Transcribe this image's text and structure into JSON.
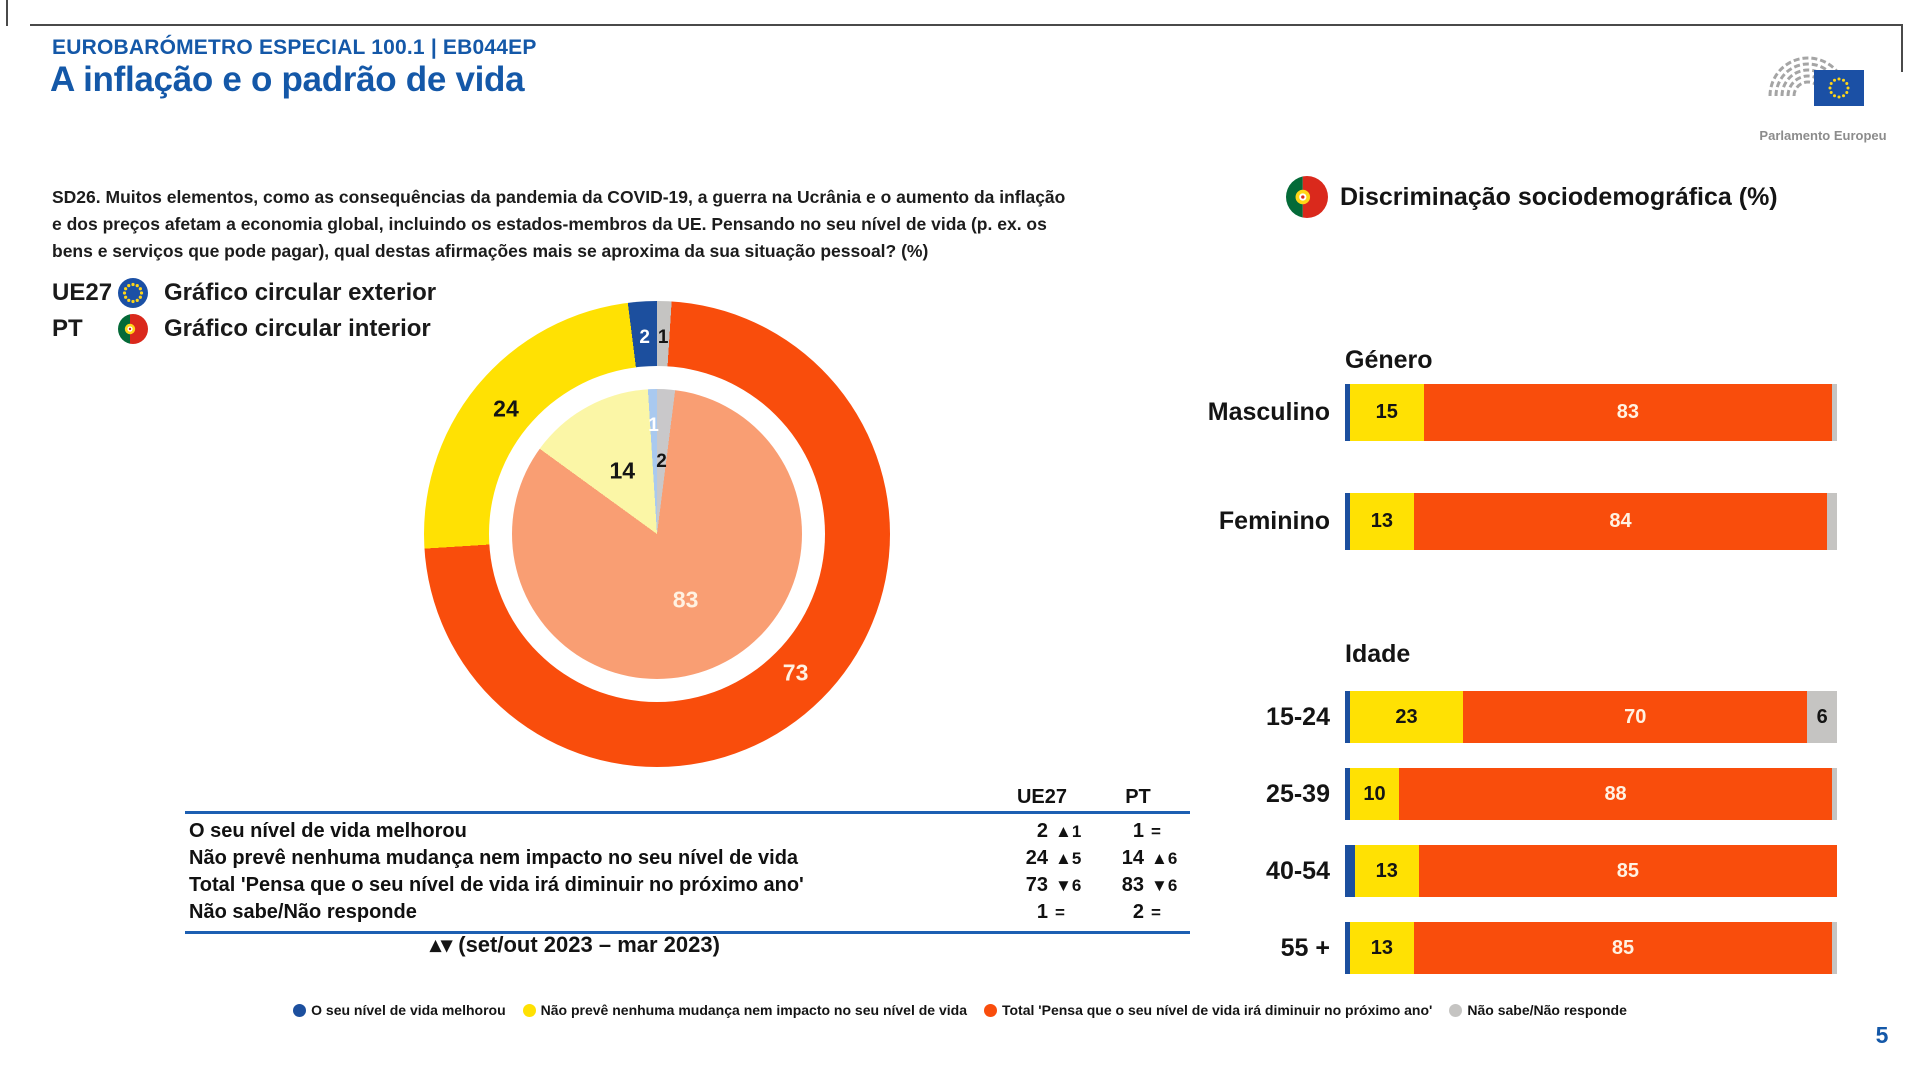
{
  "header": {
    "kicker": "EUROBARÓMETRO ESPECIAL 100.1 | EB044EP",
    "title": "A inflação e o padrão de vida",
    "logo_caption": "Parlamento Europeu"
  },
  "question": "SD26. Muitos elementos, como as consequências da pandemia da COVID-19, a guerra na Ucrânia e o aumento da inflação e dos preços afetam a economia global, incluindo os estados-membros da UE. Pensando no seu nível de vida (p. ex. os bens e serviços que pode pagar), qual destas afirmações mais se aproxima da sua situação pessoal? (%)",
  "right_title": "Discriminação sociodemográfica (%)",
  "pie_legend": [
    {
      "code": "UE27",
      "icon": "eu-flag-icon",
      "label": "Gráfico circular exterior"
    },
    {
      "code": "PT",
      "icon": "portugal-flag-icon",
      "label": "Gráfico circular interior"
    }
  ],
  "chart_data": [
    {
      "type": "pie",
      "variant": "double-donut",
      "categories": [
        "O seu nível de vida melhorou",
        "Não prevê nenhuma mudança nem impacto no seu nível de vida",
        "Total 'Pensa que o seu nível de vida irá diminuir no próximo ano'",
        "Não sabe/Não responde"
      ],
      "series": [
        {
          "name": "UE27",
          "ring": "exterior",
          "values": [
            2,
            24,
            73,
            1
          ]
        },
        {
          "name": "PT",
          "ring": "interior",
          "values": [
            1,
            14,
            83,
            2
          ]
        }
      ]
    },
    {
      "type": "bar",
      "orientation": "horizontal",
      "stacked": true,
      "xlim": [
        0,
        100
      ],
      "categories": [
        "O seu nível de vida melhorou",
        "Não prevê nenhuma mudança nem impacto no seu nível de vida",
        "Total 'Pensa que o seu nível de vida irá diminuir no próximo ano'",
        "Não sabe/Não responde"
      ],
      "groups": [
        {
          "title": "Género",
          "rows": [
            {
              "label": "Masculino",
              "values": [
                1,
                15,
                83,
                1
              ]
            },
            {
              "label": "Feminino",
              "values": [
                1,
                13,
                84,
                2
              ]
            }
          ]
        },
        {
          "title": "Idade",
          "rows": [
            {
              "label": "15-24",
              "values": [
                1,
                23,
                70,
                6
              ]
            },
            {
              "label": "25-39",
              "values": [
                1,
                10,
                88,
                1
              ]
            },
            {
              "label": "40-54",
              "values": [
                2,
                13,
                85,
                0
              ]
            },
            {
              "label": "55 +",
              "values": [
                1,
                13,
                85,
                1
              ]
            }
          ]
        }
      ]
    }
  ],
  "table": {
    "col_headers": [
      "UE27",
      "PT"
    ],
    "rows": [
      {
        "label": "O seu nível de vida melhorou",
        "ue27": "2",
        "ue27_trend": "▲1",
        "pt": "1",
        "pt_trend": "="
      },
      {
        "label": "Não prevê nenhuma mudança nem impacto no seu nível de vida",
        "ue27": "24",
        "ue27_trend": "▲5",
        "pt": "14",
        "pt_trend": "▲6"
      },
      {
        "label": "Total 'Pensa que o seu nível de vida irá diminuir no próximo ano'",
        "ue27": "73",
        "ue27_trend": "▼6",
        "pt": "83",
        "pt_trend": "▼6"
      },
      {
        "label": "Não sabe/Não responde",
        "ue27": "1",
        "ue27_trend": "=",
        "pt": "2",
        "pt_trend": "="
      }
    ]
  },
  "note": "▴▾ (set/out 2023 – mar 2023)",
  "legend": [
    "O seu nível de vida melhorou",
    "Não prevê nenhuma mudança nem impacto no seu nível de vida",
    "Total 'Pensa que o seu nível de vida irá diminuir no próximo ano'",
    "Não sabe/Não responde"
  ],
  "page_number": "5",
  "colors": {
    "categories": [
      "#1C4F9E",
      "#FFE103",
      "#F94D0C",
      "#C5C4C2"
    ],
    "categories_light": [
      "#A9C9EF",
      "#FBF6A6",
      "#F99E73",
      "#C9C8CA"
    ],
    "accent_blue": "#1458A8",
    "table_border": "#1D5FB2",
    "light_label": "#FFF2E2",
    "dark_label": "#141414"
  }
}
